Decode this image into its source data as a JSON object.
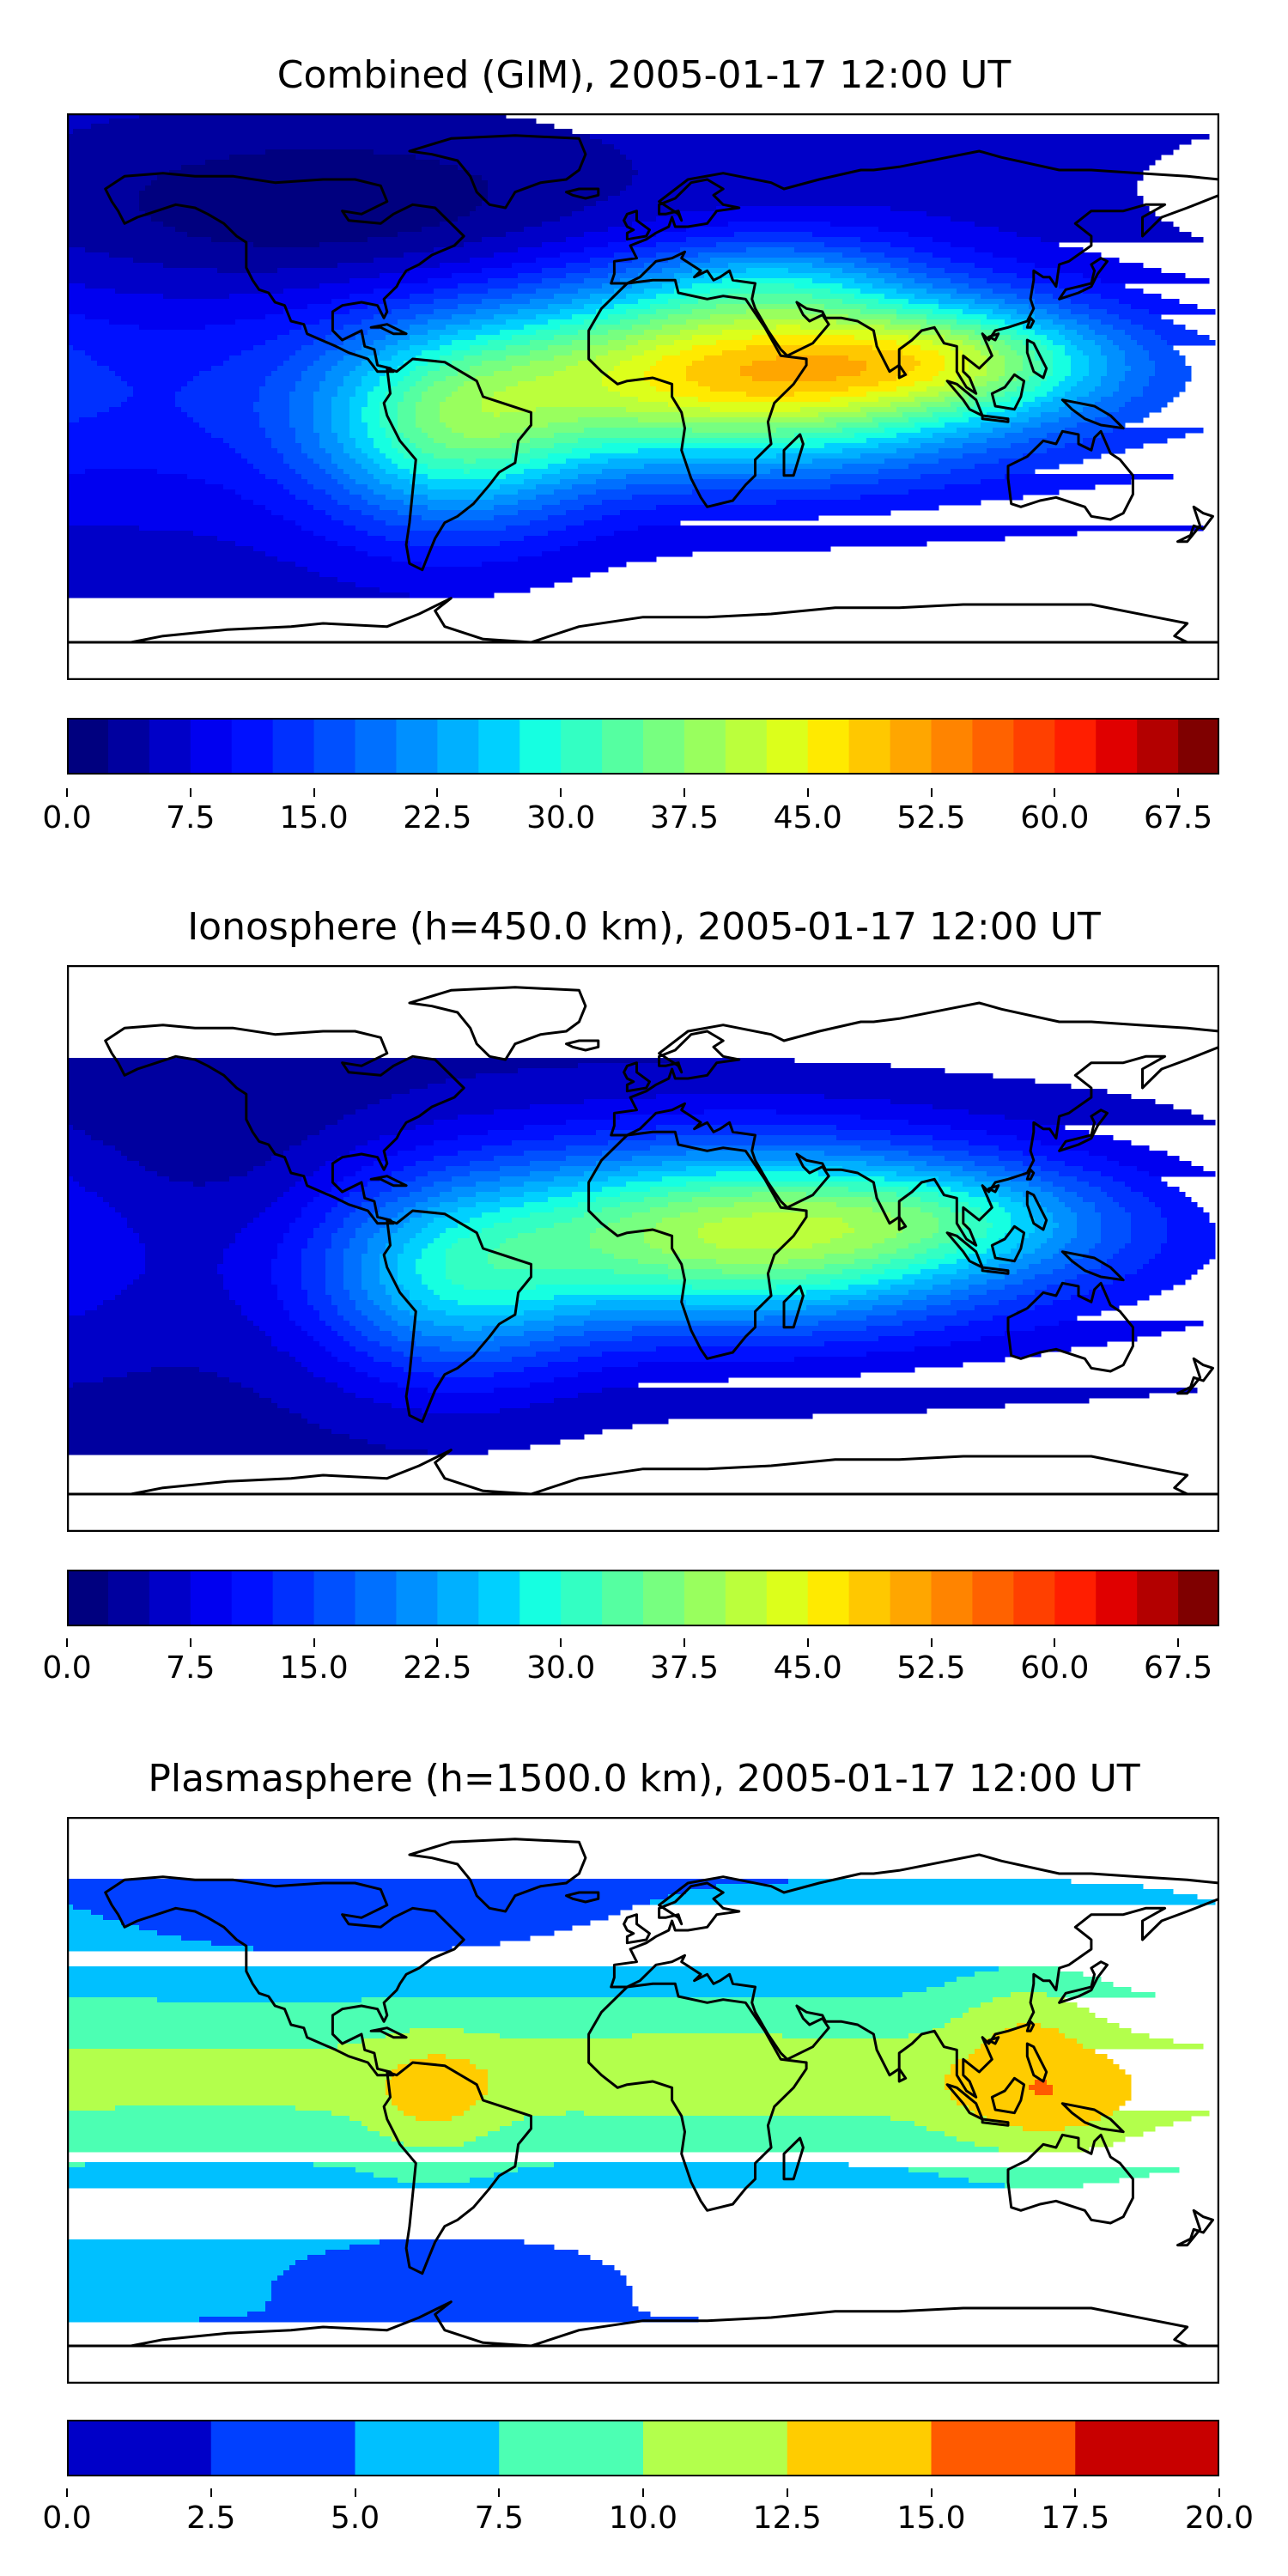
{
  "panels": [
    {
      "title": "Combined (GIM), 2005-01-17 12:00 UT",
      "field": "combined",
      "colorbar": {
        "min": 0,
        "max": 70,
        "levels": 28,
        "ticks": [
          "0.0",
          "7.5",
          "15.0",
          "22.5",
          "30.0",
          "37.5",
          "45.0",
          "52.5",
          "60.0",
          "67.5"
        ],
        "tick_values": [
          0,
          7.5,
          15,
          22.5,
          30,
          37.5,
          45,
          52.5,
          60,
          67.5
        ],
        "colors": [
          "#00007f",
          "#00009f",
          "#0000c8",
          "#0000f0",
          "#0010ff",
          "#0030ff",
          "#0050ff",
          "#0070ff",
          "#0090ff",
          "#00b0ff",
          "#00d0ff",
          "#16ffe1",
          "#33ffc3",
          "#55ffa1",
          "#77ff80",
          "#99ff5e",
          "#bbff3c",
          "#dcff1b",
          "#ffea00",
          "#ffc800",
          "#ffa600",
          "#ff8400",
          "#ff6200",
          "#ff4000",
          "#ff1e00",
          "#e00000",
          "#b30000",
          "#7f0000"
        ]
      }
    },
    {
      "title": "Ionosphere  (h=450.0 km), 2005-01-17 12:00 UT",
      "field": "ionosphere",
      "colorbar": {
        "min": 0,
        "max": 70,
        "levels": 28,
        "ticks": [
          "0.0",
          "7.5",
          "15.0",
          "22.5",
          "30.0",
          "37.5",
          "45.0",
          "52.5",
          "60.0",
          "67.5"
        ],
        "tick_values": [
          0,
          7.5,
          15,
          22.5,
          30,
          37.5,
          45,
          52.5,
          60,
          67.5
        ],
        "colors": [
          "#00007f",
          "#00009f",
          "#0000c8",
          "#0000f0",
          "#0010ff",
          "#0030ff",
          "#0050ff",
          "#0070ff",
          "#0090ff",
          "#00b0ff",
          "#00d0ff",
          "#16ffe1",
          "#33ffc3",
          "#55ffa1",
          "#77ff80",
          "#99ff5e",
          "#bbff3c",
          "#dcff1b",
          "#ffea00",
          "#ffc800",
          "#ffa600",
          "#ff8400",
          "#ff6200",
          "#ff4000",
          "#ff1e00",
          "#e00000",
          "#b30000",
          "#7f0000"
        ]
      }
    },
    {
      "title": "Plasmasphere (h=1500.0 km), 2005-01-17 12:00 UT",
      "field": "plasmasphere",
      "colorbar": {
        "min": 0,
        "max": 20,
        "levels": 8,
        "ticks": [
          "0.0",
          "2.5",
          "5.0",
          "7.5",
          "10.0",
          "12.5",
          "15.0",
          "17.5",
          "20.0"
        ],
        "tick_values": [
          0,
          2.5,
          5,
          7.5,
          10,
          12.5,
          15,
          17.5,
          20
        ],
        "colors": [
          "#0000c8",
          "#0040ff",
          "#00c0ff",
          "#4cffb3",
          "#b3ff4c",
          "#ffcc00",
          "#ff5a00",
          "#c80000"
        ]
      }
    }
  ]
}
